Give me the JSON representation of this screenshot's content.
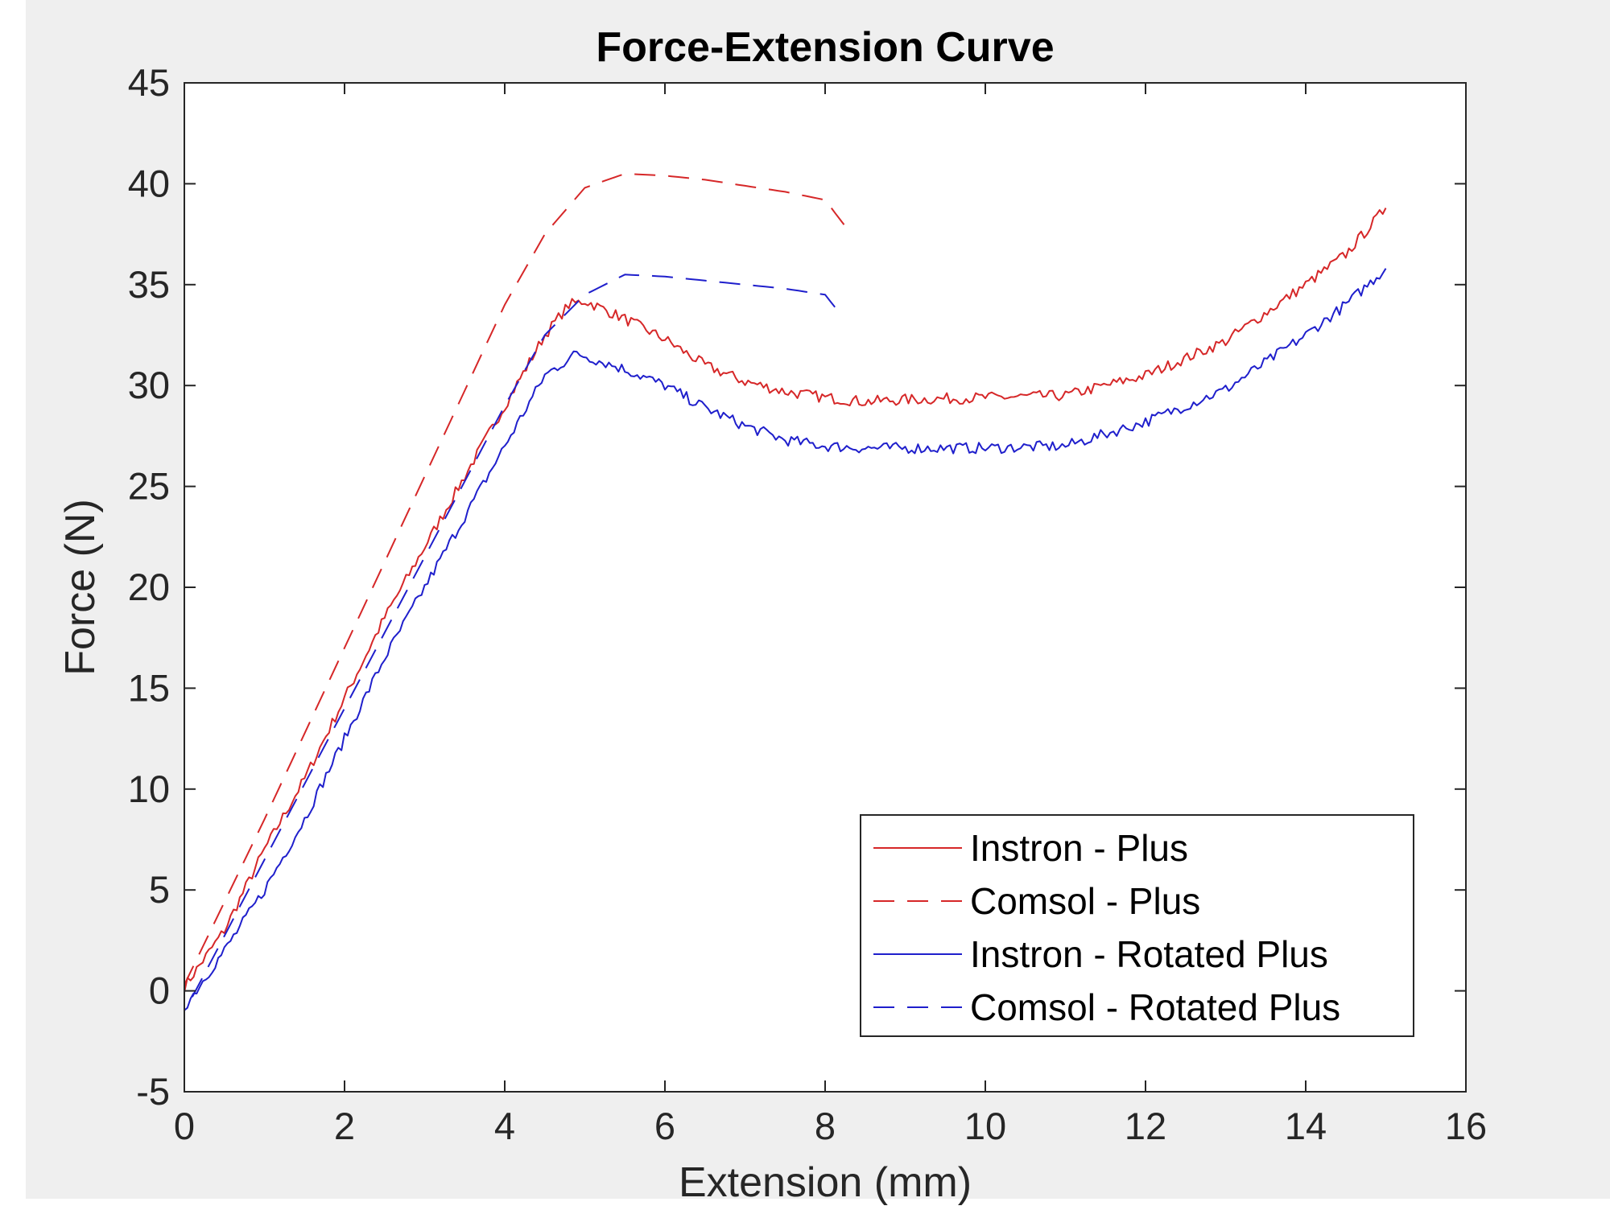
{
  "chart_data": {
    "type": "line",
    "title": "Force-Extension Curve",
    "xlabel": "Extension (mm)",
    "ylabel": "Force (N)",
    "xlim": [
      0,
      16
    ],
    "ylim": [
      -5,
      45
    ],
    "xticks": [
      0,
      2,
      4,
      6,
      8,
      10,
      12,
      14,
      16
    ],
    "yticks": [
      -5,
      0,
      5,
      10,
      15,
      20,
      25,
      30,
      35,
      40,
      45
    ],
    "grid": false,
    "legend_position": "bottom-right",
    "series": [
      {
        "name": "Instron - Plus",
        "color": "#d62728",
        "style": "solid",
        "noisy": true,
        "x": [
          0,
          0.5,
          1,
          1.5,
          2,
          2.5,
          3,
          3.5,
          4,
          4.5,
          4.8,
          5,
          5.5,
          6,
          6.5,
          7,
          7.5,
          8,
          8.5,
          9,
          10,
          11,
          12,
          13,
          14,
          14.5,
          15
        ],
        "y": [
          0.2,
          3,
          7,
          10.5,
          14.5,
          18.5,
          22,
          25.5,
          29,
          32.5,
          34,
          34.2,
          33.3,
          32.3,
          31,
          30.2,
          29.7,
          29.4,
          29.2,
          29.3,
          29.4,
          29.5,
          30.5,
          32.2,
          35,
          36.5,
          38.8
        ]
      },
      {
        "name": "Comsol - Plus",
        "color": "#d62728",
        "style": "dashed",
        "noisy": false,
        "x": [
          0,
          1,
          2,
          3,
          4,
          4.5,
          5,
          5.5,
          6,
          6.5,
          7,
          7.5,
          8,
          8.25
        ],
        "y": [
          0.3,
          8.5,
          17,
          25.5,
          34,
          37.5,
          39.8,
          40.5,
          40.4,
          40.2,
          39.9,
          39.6,
          39.2,
          37.9
        ]
      },
      {
        "name": "Instron - Rotated Plus",
        "color": "#1f1fcc",
        "style": "solid",
        "noisy": true,
        "x": [
          0,
          0.5,
          1,
          1.5,
          2,
          2.5,
          3,
          3.5,
          4,
          4.5,
          4.9,
          5.5,
          6,
          6.5,
          7,
          7.5,
          8,
          8.5,
          9,
          10,
          11,
          12,
          13,
          14,
          14.5,
          15
        ],
        "y": [
          -0.8,
          2,
          5,
          8.5,
          12.5,
          16.5,
          20,
          23.5,
          27,
          30.5,
          31.6,
          30.8,
          30,
          28.9,
          28,
          27.3,
          27,
          26.9,
          26.9,
          26.9,
          27,
          28.2,
          29.8,
          32.5,
          34,
          35.8
        ]
      },
      {
        "name": "Comsol - Rotated Plus",
        "color": "#1f1fcc",
        "style": "dashed",
        "noisy": false,
        "x": [
          0.1,
          1,
          2,
          3,
          4,
          4.5,
          5,
          5.5,
          6,
          6.5,
          7,
          7.5,
          8,
          8.2
        ],
        "y": [
          -0.3,
          6.5,
          14,
          21.5,
          29,
          32.5,
          34.5,
          35.5,
          35.4,
          35.2,
          35,
          34.8,
          34.5,
          33.5
        ]
      }
    ]
  }
}
